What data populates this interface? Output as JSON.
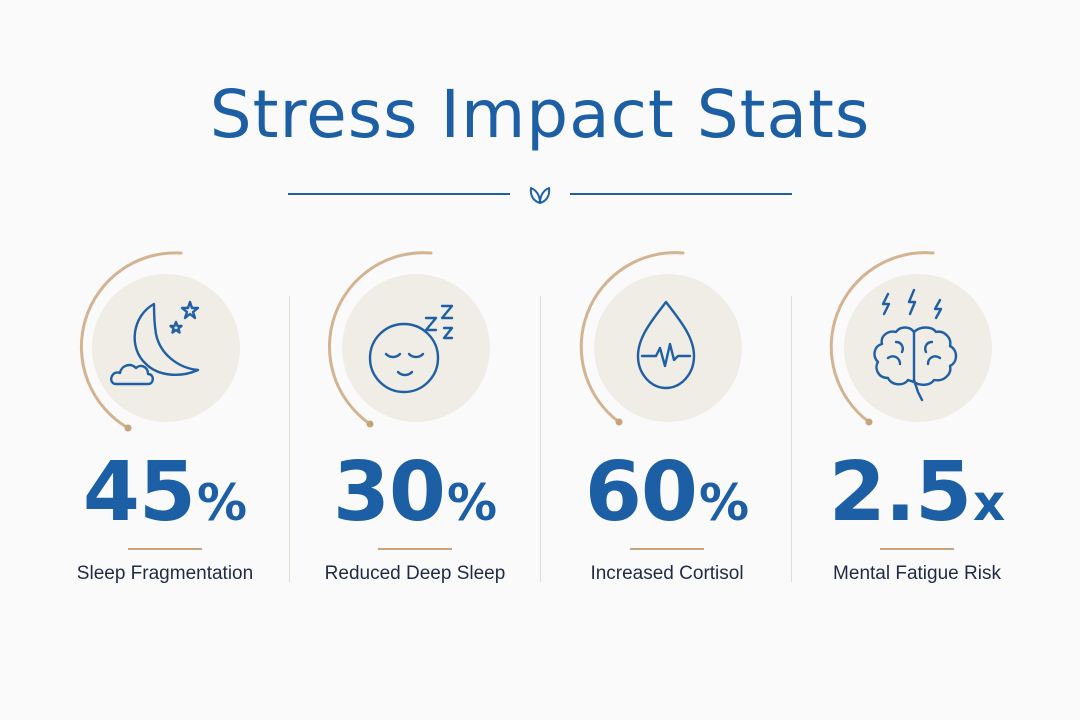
{
  "title": "Stress Impact Stats",
  "colors": {
    "primary": "#1d5fa4",
    "accent": "#c9a27e",
    "circle_bg": "#f0ece6",
    "label": "#1f2a44",
    "background": "#fafafa"
  },
  "stats": [
    {
      "value": "45",
      "unit": "%",
      "label": "Sleep Fragmentation",
      "icon": "moon-stars-cloud-icon"
    },
    {
      "value": "30",
      "unit": "%",
      "label": "Reduced Deep Sleep",
      "icon": "sleeping-face-icon"
    },
    {
      "value": "60",
      "unit": "%",
      "label": "Increased Cortisol",
      "icon": "droplet-pulse-icon"
    },
    {
      "value": "2.5",
      "unit": "x",
      "label": "Mental Fatigue Risk",
      "icon": "brain-lightning-icon"
    }
  ]
}
